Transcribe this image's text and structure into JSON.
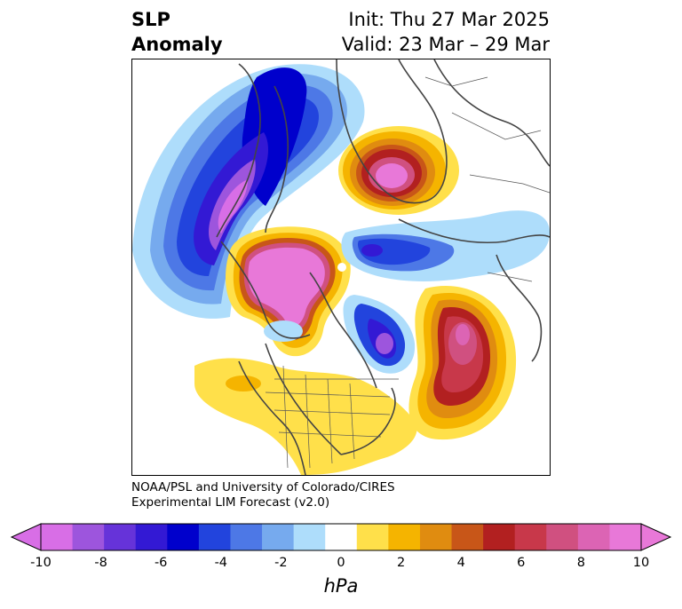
{
  "header": {
    "title_line1": "SLP",
    "title_line2": "Anomaly",
    "init_text": "Init: Thu 27 Mar 2025",
    "valid_text": "Valid: 23 Mar – 29 Mar"
  },
  "credit": {
    "line1": "NOAA/PSL and University of Colorado/CIRES",
    "line2": "Experimental LIM Forecast (v2.0)"
  },
  "colorbar": {
    "unit": "hPa",
    "ticks": [
      "-10",
      "-8",
      "-6",
      "-4",
      "-2",
      "0",
      "2",
      "4",
      "6",
      "8",
      "10"
    ],
    "colors": [
      "#d86ee6",
      "#9d55dd",
      "#6633d9",
      "#3319d4",
      "#0000cc",
      "#2244dd",
      "#4d78e6",
      "#76aaee",
      "#aeddfb",
      "#ffffff",
      "#ffe04a",
      "#f5b400",
      "#e08c10",
      "#c85618",
      "#b22020",
      "#c8384a",
      "#d05080",
      "#dc64b4",
      "#e878d8"
    ],
    "extend_low_color": "#d86ee6",
    "extend_high_color": "#e878d8"
  },
  "map": {
    "projection": "north-polar-stereographic",
    "features": [
      {
        "name": "negative anomaly over Greenland and Europe / NE Atlantic",
        "sign": "negative"
      },
      {
        "name": "positive anomaly over western Russia",
        "sign": "positive"
      },
      {
        "name": "positive anomaly over Siberia and Arctic Ocean",
        "sign": "positive"
      },
      {
        "name": "negative anomaly over Gulf of Alaska / NE Pacific",
        "sign": "negative"
      },
      {
        "name": "negative anomaly over Kamchatka / Sea of Okhotsk",
        "sign": "negative"
      },
      {
        "name": "positive anomaly over North Pacific",
        "sign": "positive"
      },
      {
        "name": "positive anomaly over eastern United States",
        "sign": "positive"
      }
    ]
  }
}
